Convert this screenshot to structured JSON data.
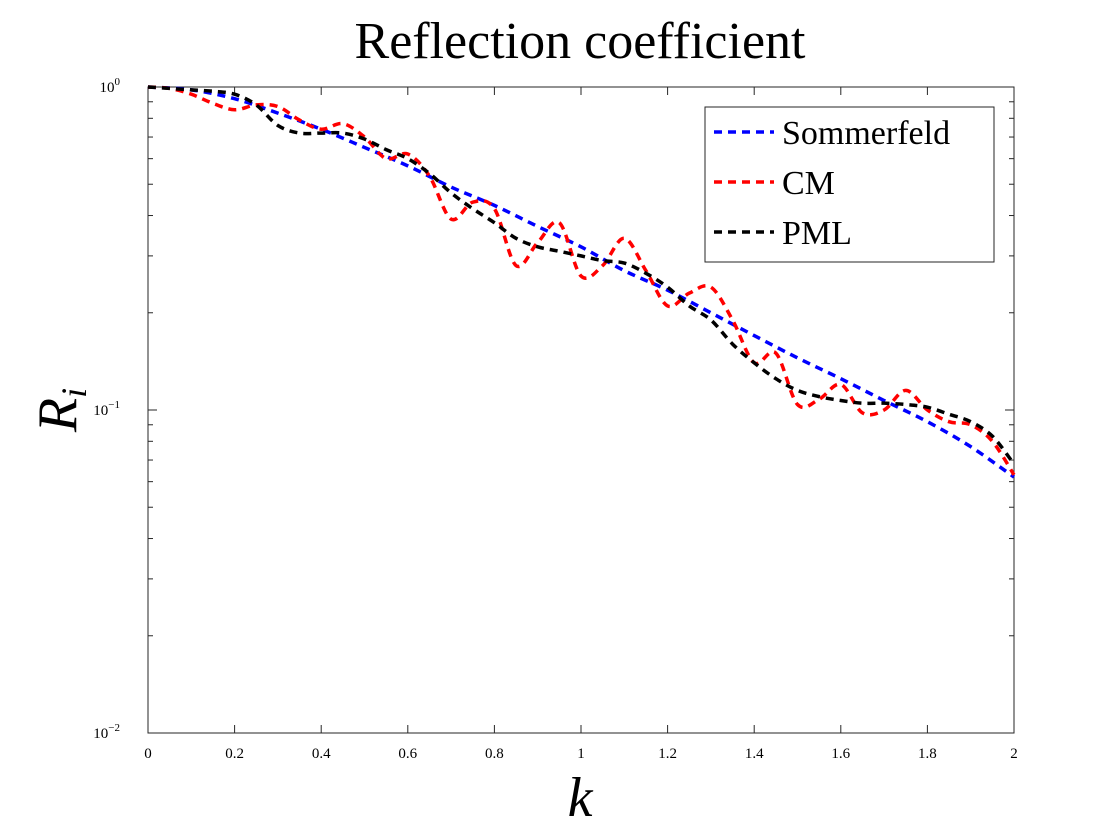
{
  "chart_data": {
    "type": "line",
    "title": "Reflection coefficient",
    "xlabel": "k",
    "ylabel_main": "R",
    "ylabel_sub": "i",
    "xlim": [
      0,
      2
    ],
    "ylim": [
      0.01,
      1
    ],
    "yscale": "log",
    "grid": false,
    "legend_position": "top-right",
    "x_ticks": [
      "0",
      "0.2",
      "0.4",
      "0.6",
      "0.8",
      "1",
      "1.2",
      "1.4",
      "1.6",
      "1.8",
      "2"
    ],
    "y_ticks": [
      {
        "value": 1,
        "base": "10",
        "exp": "0"
      },
      {
        "value": 0.1,
        "base": "10",
        "exp": "−1"
      },
      {
        "value": 0.01,
        "base": "10",
        "exp": "−2"
      }
    ],
    "series": [
      {
        "name": "Sommerfeld",
        "color": "#0000ff",
        "x": [
          0,
          0.1,
          0.2,
          0.3,
          0.4,
          0.5,
          0.6,
          0.7,
          0.8,
          0.9,
          1.0,
          1.1,
          1.2,
          1.3,
          1.4,
          1.5,
          1.6,
          1.7,
          1.8,
          1.9,
          2.0
        ],
        "y": [
          1.0,
          0.98,
          0.92,
          0.83,
          0.74,
          0.65,
          0.57,
          0.49,
          0.43,
          0.37,
          0.32,
          0.27,
          0.235,
          0.2,
          0.17,
          0.145,
          0.125,
          0.107,
          0.092,
          0.077,
          0.062
        ]
      },
      {
        "name": "CM",
        "color": "#ff0000",
        "x": [
          0,
          0.05,
          0.1,
          0.15,
          0.2,
          0.25,
          0.3,
          0.35,
          0.4,
          0.45,
          0.5,
          0.55,
          0.6,
          0.65,
          0.7,
          0.75,
          0.8,
          0.85,
          0.9,
          0.95,
          1.0,
          1.05,
          1.1,
          1.15,
          1.2,
          1.25,
          1.3,
          1.35,
          1.4,
          1.45,
          1.5,
          1.55,
          1.6,
          1.65,
          1.7,
          1.75,
          1.8,
          1.85,
          1.9,
          1.95,
          2.0
        ],
        "y": [
          1.0,
          0.99,
          0.95,
          0.89,
          0.85,
          0.88,
          0.87,
          0.79,
          0.74,
          0.77,
          0.7,
          0.6,
          0.62,
          0.53,
          0.39,
          0.44,
          0.42,
          0.28,
          0.33,
          0.38,
          0.26,
          0.28,
          0.34,
          0.27,
          0.21,
          0.23,
          0.24,
          0.19,
          0.14,
          0.15,
          0.104,
          0.108,
          0.12,
          0.098,
          0.1,
          0.115,
          0.1,
          0.092,
          0.09,
          0.08,
          0.063
        ]
      },
      {
        "name": "PML",
        "color": "#000000",
        "x": [
          0,
          0.05,
          0.1,
          0.15,
          0.2,
          0.25,
          0.3,
          0.35,
          0.4,
          0.45,
          0.5,
          0.55,
          0.6,
          0.65,
          0.7,
          0.75,
          0.8,
          0.85,
          0.9,
          0.95,
          1.0,
          1.05,
          1.1,
          1.15,
          1.2,
          1.25,
          1.3,
          1.35,
          1.4,
          1.45,
          1.5,
          1.55,
          1.6,
          1.65,
          1.7,
          1.75,
          1.8,
          1.85,
          1.9,
          1.95,
          2.0
        ],
        "y": [
          1.0,
          0.99,
          0.98,
          0.97,
          0.95,
          0.88,
          0.76,
          0.72,
          0.72,
          0.72,
          0.69,
          0.64,
          0.6,
          0.54,
          0.47,
          0.42,
          0.38,
          0.34,
          0.32,
          0.31,
          0.3,
          0.29,
          0.285,
          0.265,
          0.24,
          0.21,
          0.19,
          0.16,
          0.14,
          0.125,
          0.115,
          0.11,
          0.107,
          0.105,
          0.105,
          0.104,
          0.102,
          0.097,
          0.092,
          0.083,
          0.068
        ]
      }
    ]
  }
}
